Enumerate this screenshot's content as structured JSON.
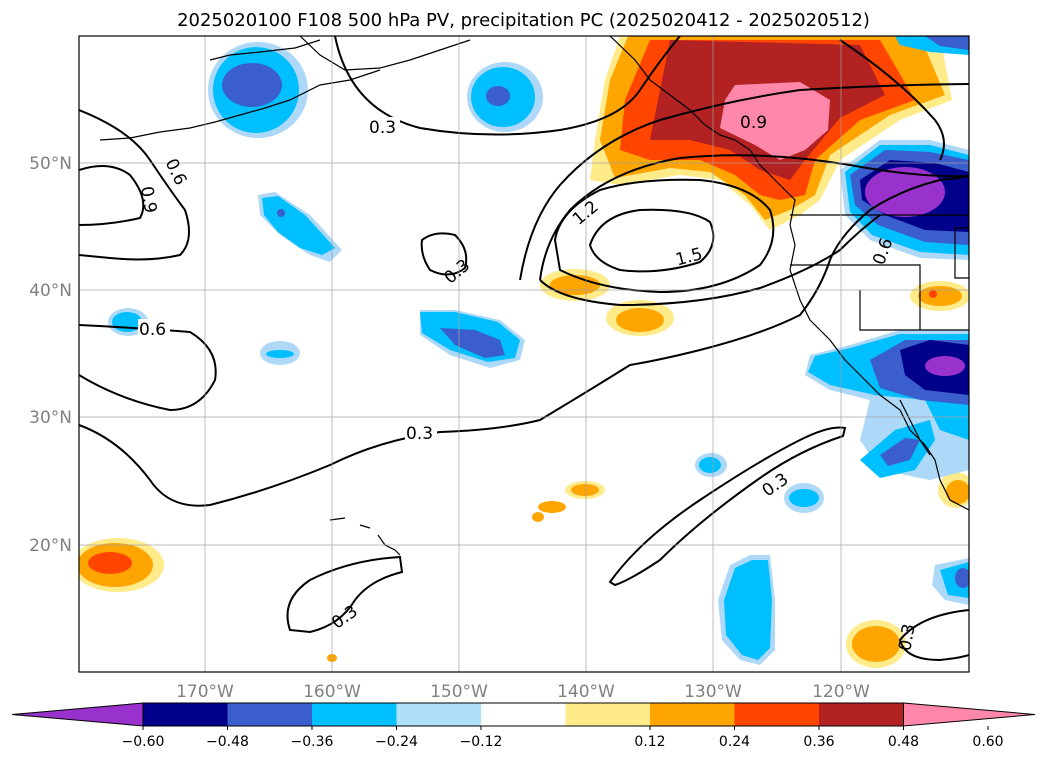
{
  "title": "2025020100 F108 500 hPa PV, precipitation PC (2025020412 - 2025020512)",
  "map": {
    "lat_labels": [
      "50°N",
      "40°N",
      "30°N",
      "20°N"
    ],
    "lon_labels": [
      "170°W",
      "160°W",
      "150°W",
      "140°W",
      "130°W",
      "120°W"
    ],
    "contour_labels": [
      "0.3",
      "0.6",
      "0.9",
      "1.2",
      "1.5"
    ],
    "colors": {
      "pos": [
        "#ffeb8a",
        "#ffa500",
        "#ff4500",
        "#b22222",
        "#ff88aa"
      ],
      "neg": [
        "#add8f7",
        "#00bfff",
        "#3a5fcd",
        "#00008b",
        "#9b30d0"
      ]
    }
  },
  "colorbar": {
    "ticks": [
      "−0.60",
      "−0.48",
      "−0.36",
      "−0.24",
      "−0.12",
      "0.12",
      "0.24",
      "0.36",
      "0.48",
      "0.60"
    ],
    "colors": [
      "#9932cc",
      "#00008b",
      "#3a5fcd",
      "#00bfff",
      "#aee0fa",
      "#ffffff",
      "#ffeb8a",
      "#ffa500",
      "#ff4500",
      "#b22222",
      "#ff88aa"
    ]
  }
}
